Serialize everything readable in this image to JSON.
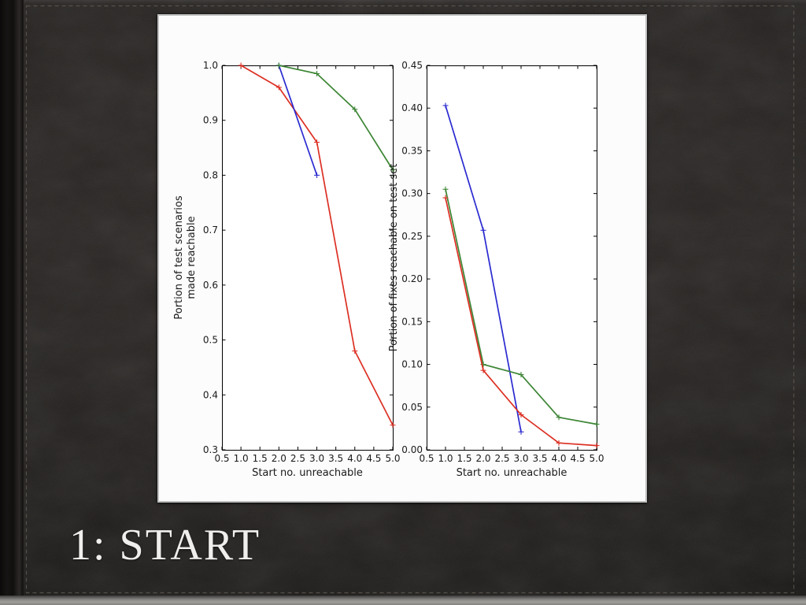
{
  "slide": {
    "title": "1: START"
  },
  "colors": {
    "background": "#242120",
    "card_background": "#fcfcfc",
    "card_border": "#bfbfbf",
    "title_text": "#efeeec",
    "stitch": "#5d5850",
    "red": "#dc2f23",
    "green": "#3d8535",
    "blue": "#2a2ad0"
  },
  "chart_data": [
    {
      "type": "line",
      "title": "",
      "xlabel": "Start no. unreachable",
      "ylabel": [
        "Portion of test scenarios",
        "made reachable"
      ],
      "xlim": [
        0.5,
        5.0
      ],
      "ylim": [
        0.3,
        1.0
      ],
      "grid": false,
      "legend": null,
      "xticks": [
        "0.5",
        "1.0",
        "1.5",
        "2.0",
        "2.5",
        "3.0",
        "3.5",
        "4.0",
        "4.5",
        "5.0"
      ],
      "yticks": [
        "0.3",
        "0.4",
        "0.5",
        "0.6",
        "0.7",
        "0.8",
        "0.9",
        "1.0"
      ],
      "series": [
        {
          "name": "red",
          "color_key": "red",
          "points": [
            [
              1.0,
              1.0
            ],
            [
              2.0,
              0.96
            ],
            [
              3.0,
              0.86
            ],
            [
              4.0,
              0.48
            ],
            [
              5.0,
              0.345
            ]
          ]
        },
        {
          "name": "blue",
          "color_key": "blue",
          "points": [
            [
              2.0,
              1.0
            ],
            [
              3.0,
              0.8
            ]
          ]
        },
        {
          "name": "green",
          "color_key": "green",
          "points": [
            [
              2.0,
              1.0
            ],
            [
              3.0,
              0.985
            ],
            [
              4.0,
              0.92
            ],
            [
              5.0,
              0.81
            ]
          ]
        }
      ]
    },
    {
      "type": "line",
      "title": "",
      "xlabel": "Start no. unreachable",
      "ylabel": [
        "Portion of fixes reachable on test set"
      ],
      "xlim": [
        0.5,
        5.0
      ],
      "ylim": [
        0.0,
        0.45
      ],
      "grid": false,
      "legend": null,
      "xticks": [
        "0.5",
        "1.0",
        "1.5",
        "2.0",
        "2.5",
        "3.0",
        "3.5",
        "4.0",
        "4.5",
        "5.0"
      ],
      "yticks": [
        "0.00",
        "0.05",
        "0.10",
        "0.15",
        "0.20",
        "0.25",
        "0.30",
        "0.35",
        "0.40",
        "0.45"
      ],
      "series": [
        {
          "name": "blue",
          "color_key": "blue",
          "points": [
            [
              1.0,
              0.403
            ],
            [
              2.0,
              0.257
            ],
            [
              3.0,
              0.021
            ]
          ]
        },
        {
          "name": "green",
          "color_key": "green",
          "points": [
            [
              1.0,
              0.305
            ],
            [
              2.0,
              0.1
            ],
            [
              3.0,
              0.088
            ],
            [
              4.0,
              0.038
            ],
            [
              5.0,
              0.03
            ]
          ]
        },
        {
          "name": "red",
          "color_key": "red",
          "points": [
            [
              1.0,
              0.295
            ],
            [
              2.0,
              0.093
            ],
            [
              3.0,
              0.041
            ],
            [
              4.0,
              0.008
            ],
            [
              5.0,
              0.005
            ]
          ]
        }
      ]
    }
  ]
}
